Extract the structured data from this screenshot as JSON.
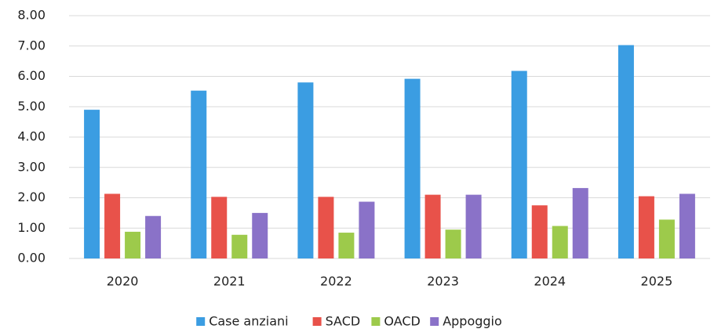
{
  "chart_data": {
    "type": "bar",
    "categories": [
      "2020",
      "2021",
      "2022",
      "2023",
      "2024",
      "2025"
    ],
    "series": [
      {
        "name": "Case anziani",
        "color": "#3b9de2",
        "values": [
          4.9,
          5.53,
          5.8,
          5.92,
          6.18,
          7.03
        ]
      },
      {
        "name": "SACD",
        "color": "#e8524a",
        "values": [
          2.13,
          2.03,
          2.03,
          2.1,
          1.75,
          2.05
        ]
      },
      {
        "name": "OACD",
        "color": "#9dca4b",
        "values": [
          0.88,
          0.78,
          0.85,
          0.95,
          1.07,
          1.28
        ]
      },
      {
        "name": "Appoggio",
        "color": "#8a72c8",
        "values": [
          1.4,
          1.5,
          1.87,
          2.1,
          2.32,
          2.13
        ]
      }
    ],
    "ylim": [
      0,
      8
    ],
    "yticks": [
      {
        "value": 0,
        "label": "0.00"
      },
      {
        "value": 1,
        "label": "1.00"
      },
      {
        "value": 2,
        "label": "2.00"
      },
      {
        "value": 3,
        "label": "3.00"
      },
      {
        "value": 4,
        "label": "4.00"
      },
      {
        "value": 5,
        "label": "5.00"
      },
      {
        "value": 6,
        "label": "6.00"
      },
      {
        "value": 7,
        "label": "7.00"
      },
      {
        "value": 8,
        "label": "8.00"
      }
    ],
    "grid": true,
    "legend": "bottom"
  }
}
